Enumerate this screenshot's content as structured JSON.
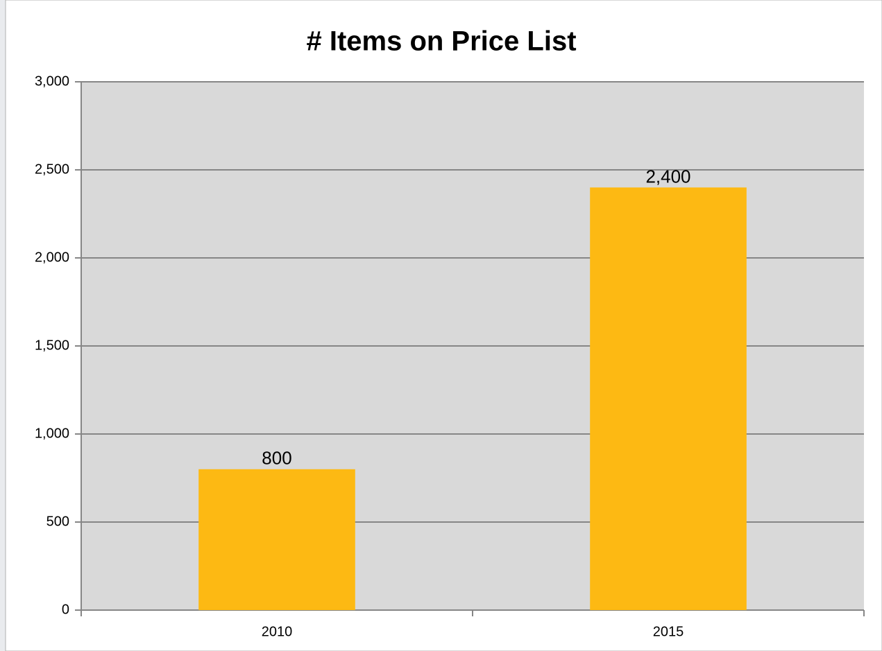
{
  "chart_data": {
    "type": "bar",
    "title": "# Items on Price List",
    "categories": [
      "2010",
      "2015"
    ],
    "values": [
      800,
      2400
    ],
    "value_labels": [
      "800",
      "2,400"
    ],
    "color": "#fdb913",
    "ylim": [
      0,
      3000
    ],
    "yticks": [
      0,
      500,
      {
        "value": 1000,
        "label": "1,000"
      },
      {
        "value": 1500,
        "label": "1,500"
      },
      {
        "value": 2000,
        "label": "2,000"
      },
      {
        "value": 2500,
        "label": "2,500"
      },
      {
        "value": 3000,
        "label": "3,000"
      }
    ],
    "grid": true
  }
}
